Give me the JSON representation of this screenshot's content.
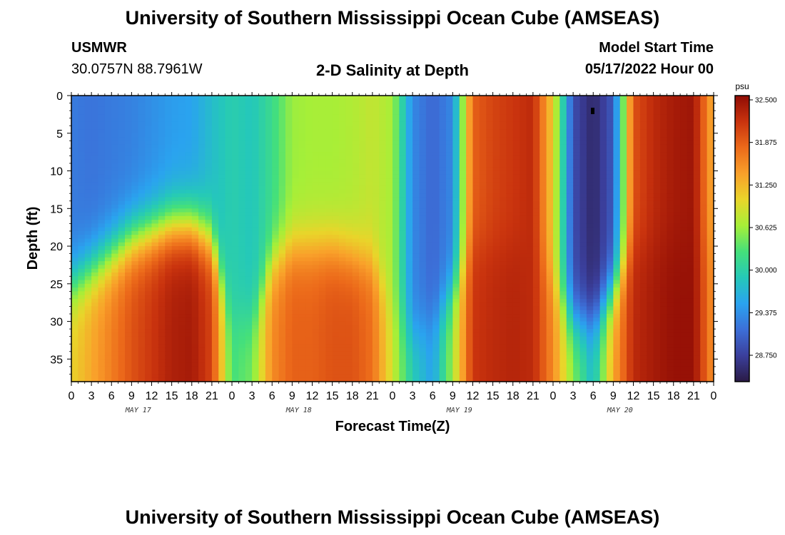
{
  "header": {
    "title": "University of Southern Mississippi Ocean Cube (AMSEAS)",
    "station": "USMWR",
    "coords": "30.0757N  88.7961W",
    "subtitle": "2-D Salinity at Depth",
    "model_start_label": "Model Start Time",
    "model_start_value": "05/17/2022 Hour 00"
  },
  "footer": {
    "title_repeat": "University of Southern Mississippi Ocean Cube (AMSEAS)"
  },
  "chart_data": {
    "type": "heatmap",
    "title": "2-D Salinity at Depth",
    "xlabel": "Forecast Time(Z)",
    "ylabel": "Depth (ft)",
    "x_ticks": [
      "0",
      "3",
      "6",
      "9",
      "12",
      "15",
      "18",
      "21",
      "0",
      "3",
      "6",
      "9",
      "12",
      "15",
      "18",
      "21",
      "0",
      "3",
      "6",
      "9",
      "12",
      "15",
      "18",
      "21",
      "0",
      "3",
      "6",
      "9",
      "12",
      "15",
      "18",
      "21",
      "0"
    ],
    "day_labels": [
      "MAY 17",
      "MAY 18",
      "MAY 19",
      "MAY 20"
    ],
    "x_range_hours": [
      0,
      96
    ],
    "y_ticks": [
      0,
      5,
      10,
      15,
      20,
      25,
      30,
      35
    ],
    "ylim": [
      38,
      0
    ],
    "colorbar": {
      "unit": "psu",
      "ticks": [
        "32.500",
        "31.875",
        "31.250",
        "30.625",
        "30.000",
        "29.375",
        "28.750"
      ],
      "min": 28.3,
      "max": 32.5,
      "colors": [
        "#2a1a45",
        "#3b3f9c",
        "#3c6fd8",
        "#2aa3ef",
        "#25c9b8",
        "#45e07a",
        "#a6ef38",
        "#e9d52a",
        "#f9a02a",
        "#ec6a1a",
        "#c9330e",
        "#8f0c05"
      ]
    },
    "columns": [
      {
        "hour": 0,
        "top": 29.15,
        "bottom": 31.0,
        "transition_ft": 25
      },
      {
        "hour": 3,
        "top": 29.1,
        "bottom": 31.3,
        "transition_ft": 23
      },
      {
        "hour": 6,
        "top": 29.15,
        "bottom": 31.6,
        "transition_ft": 21
      },
      {
        "hour": 9,
        "top": 29.2,
        "bottom": 31.9,
        "transition_ft": 19
      },
      {
        "hour": 12,
        "top": 29.3,
        "bottom": 32.1,
        "transition_ft": 18
      },
      {
        "hour": 15,
        "top": 29.4,
        "bottom": 32.3,
        "transition_ft": 17
      },
      {
        "hour": 18,
        "top": 29.45,
        "bottom": 32.35,
        "transition_ft": 17
      },
      {
        "hour": 21,
        "top": 29.7,
        "bottom": 32.0,
        "transition_ft": 19
      },
      {
        "hour": 24,
        "top": 29.9,
        "bottom": 30.2,
        "transition_ft": 30
      },
      {
        "hour": 27,
        "top": 29.8,
        "bottom": 30.4,
        "transition_ft": 30
      },
      {
        "hour": 30,
        "top": 30.1,
        "bottom": 31.5,
        "transition_ft": 22
      },
      {
        "hour": 33,
        "top": 30.55,
        "bottom": 31.8,
        "transition_ft": 20
      },
      {
        "hour": 36,
        "top": 30.6,
        "bottom": 31.8,
        "transition_ft": 20
      },
      {
        "hour": 39,
        "top": 30.6,
        "bottom": 31.9,
        "transition_ft": 20
      },
      {
        "hour": 42,
        "top": 30.65,
        "bottom": 31.9,
        "transition_ft": 21
      },
      {
        "hour": 45,
        "top": 30.75,
        "bottom": 31.7,
        "transition_ft": 22
      },
      {
        "hour": 48,
        "top": 30.6,
        "bottom": 30.8,
        "transition_ft": 28
      },
      {
        "hour": 51,
        "top": 29.25,
        "bottom": 29.9,
        "transition_ft": 32
      },
      {
        "hour": 54,
        "top": 29.0,
        "bottom": 29.45,
        "transition_ft": 30
      },
      {
        "hour": 57,
        "top": 29.25,
        "bottom": 30.6,
        "transition_ft": 26
      },
      {
        "hour": 60,
        "top": 31.8,
        "bottom": 32.1,
        "transition_ft": 20
      },
      {
        "hour": 63,
        "top": 32.0,
        "bottom": 32.2,
        "transition_ft": 20
      },
      {
        "hour": 66,
        "top": 32.1,
        "bottom": 32.25,
        "transition_ft": 20
      },
      {
        "hour": 69,
        "top": 32.2,
        "bottom": 32.2,
        "transition_ft": 20
      },
      {
        "hour": 72,
        "top": 31.0,
        "bottom": 31.5,
        "transition_ft": 25
      },
      {
        "hour": 75,
        "top": 28.8,
        "bottom": 30.5,
        "transition_ft": 30
      },
      {
        "hour": 78,
        "top": 28.45,
        "bottom": 29.7,
        "transition_ft": 30
      },
      {
        "hour": 81,
        "top": 28.9,
        "bottom": 31.3,
        "transition_ft": 26
      },
      {
        "hour": 84,
        "top": 31.9,
        "bottom": 32.2,
        "transition_ft": 20
      },
      {
        "hour": 87,
        "top": 32.2,
        "bottom": 32.35,
        "transition_ft": 20
      },
      {
        "hour": 90,
        "top": 32.35,
        "bottom": 32.45,
        "transition_ft": 20
      },
      {
        "hour": 93,
        "top": 32.4,
        "bottom": 32.45,
        "transition_ft": 20
      },
      {
        "hour": 96,
        "top": 31.2,
        "bottom": 31.4,
        "transition_ft": 20
      }
    ]
  }
}
